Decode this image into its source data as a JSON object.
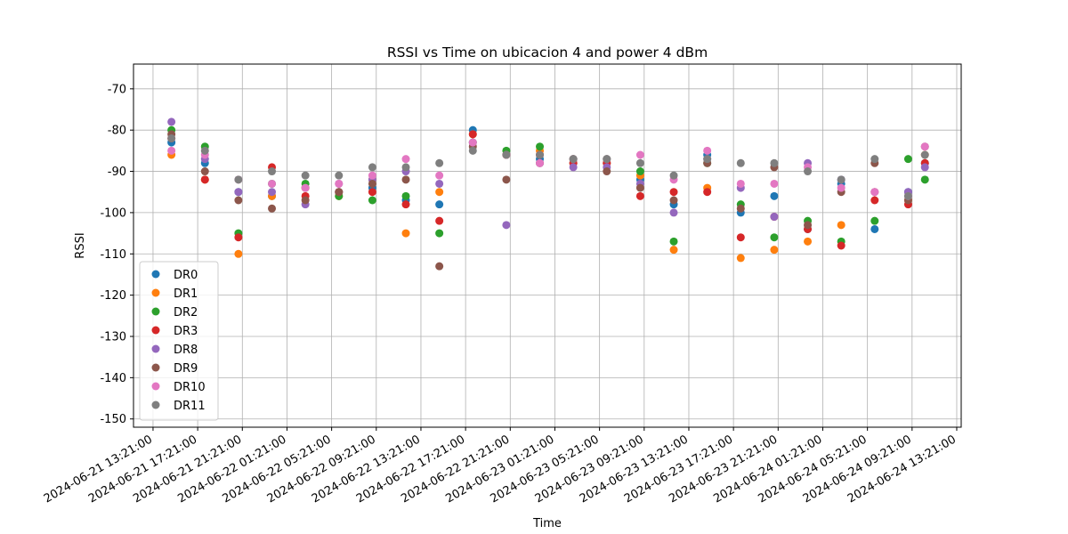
{
  "chart_data": {
    "type": "scatter",
    "title": "RSSI vs Time on ubicacion 4 and power 4 dBm",
    "x_label": "Time",
    "y_label": "RSSI",
    "x": [
      "2024-06-21 15:00:00",
      "2024-06-21 18:00:00",
      "2024-06-21 21:00:00",
      "2024-06-22 00:00:00",
      "2024-06-22 03:00:00",
      "2024-06-22 06:00:00",
      "2024-06-22 09:00:00",
      "2024-06-22 12:00:00",
      "2024-06-22 15:00:00",
      "2024-06-22 18:00:00",
      "2024-06-22 21:00:00",
      "2024-06-23 00:00:00",
      "2024-06-23 03:00:00",
      "2024-06-23 06:00:00",
      "2024-06-23 09:00:00",
      "2024-06-23 12:00:00",
      "2024-06-23 15:00:00",
      "2024-06-23 18:00:00",
      "2024-06-23 21:00:00",
      "2024-06-24 00:00:00",
      "2024-06-24 03:00:00",
      "2024-06-24 06:00:00",
      "2024-06-24 09:00:00",
      "2024-06-24 10:30:00"
    ],
    "series": [
      {
        "name": "DR0",
        "color": "#1f77b4",
        "values": [
          -83,
          -88,
          -95,
          -96,
          -94,
          -95,
          -94,
          -97,
          -98,
          -80,
          -86,
          -87,
          -88,
          -88,
          -92,
          -98,
          -86,
          -100,
          -96,
          -104,
          -93,
          -104,
          -95,
          -88
        ]
      },
      {
        "name": "DR1",
        "color": "#ff7f0e",
        "values": [
          -86,
          -92,
          -110,
          -96,
          -94,
          -96,
          -92,
          -105,
          -95,
          -81,
          -86,
          -85,
          -88,
          -88,
          -91,
          -109,
          -94,
          -111,
          -109,
          -107,
          -103,
          -95,
          -97,
          -86
        ]
      },
      {
        "name": "DR2",
        "color": "#2ca02c",
        "values": [
          -80,
          -84,
          -105,
          -93,
          -93,
          -96,
          -97,
          -96,
          -105,
          -83,
          -85,
          -84,
          -87,
          -87,
          -90,
          -107,
          -88,
          -98,
          -106,
          -102,
          -107,
          -102,
          -87,
          -92
        ]
      },
      {
        "name": "DR3",
        "color": "#d62728",
        "values": [
          -82,
          -92,
          -106,
          -89,
          -96,
          -95,
          -95,
          -98,
          -102,
          -81,
          -86,
          -86,
          -88,
          -88,
          -96,
          -95,
          -95,
          -106,
          -101,
          -104,
          -108,
          -97,
          -98,
          -88
        ]
      },
      {
        "name": "DR8",
        "color": "#9467bd",
        "values": [
          -78,
          -87,
          -95,
          -95,
          -98,
          -93,
          -92,
          -90,
          -93,
          -83,
          -103,
          -88,
          -89,
          -89,
          -93,
          -100,
          -87,
          -94,
          -101,
          -88,
          -92,
          -95,
          -95,
          -89
        ]
      },
      {
        "name": "DR9",
        "color": "#8c564b",
        "values": [
          -81,
          -90,
          -97,
          -99,
          -97,
          -95,
          -93,
          -92,
          -113,
          -84,
          -92,
          -88,
          -87,
          -90,
          -94,
          -97,
          -88,
          -99,
          -89,
          -103,
          -95,
          -88,
          -97,
          -84
        ]
      },
      {
        "name": "DR10",
        "color": "#e377c2",
        "values": [
          -85,
          -86,
          -92,
          -93,
          -94,
          -93,
          -91,
          -87,
          -91,
          -83,
          -86,
          -88,
          -87,
          -87,
          -86,
          -92,
          -85,
          -93,
          -93,
          -89,
          -94,
          -95,
          -96,
          -84
        ]
      },
      {
        "name": "DR11",
        "color": "#7f7f7f",
        "values": [
          -82,
          -85,
          -92,
          -90,
          -91,
          -91,
          -89,
          -89,
          -88,
          -85,
          -86,
          -86,
          -87,
          -87,
          -88,
          -91,
          -87,
          -88,
          -88,
          -90,
          -92,
          -87,
          -96,
          -86
        ]
      }
    ],
    "xlim": [
      "2024-06-21 11:36:00",
      "2024-06-24 13:45:00"
    ],
    "xticks": [
      "2024-06-21 13:21:00",
      "2024-06-21 17:21:00",
      "2024-06-21 21:21:00",
      "2024-06-22 01:21:00",
      "2024-06-22 05:21:00",
      "2024-06-22 09:21:00",
      "2024-06-22 13:21:00",
      "2024-06-22 17:21:00",
      "2024-06-22 21:21:00",
      "2024-06-23 01:21:00",
      "2024-06-23 05:21:00",
      "2024-06-23 09:21:00",
      "2024-06-23 13:21:00",
      "2024-06-23 17:21:00",
      "2024-06-23 21:21:00",
      "2024-06-24 01:21:00",
      "2024-06-24 05:21:00",
      "2024-06-24 09:21:00",
      "2024-06-24 13:21:00"
    ],
    "ylim": [
      -152,
      -64
    ],
    "yticks": [
      -150,
      -140,
      -130,
      -120,
      -110,
      -100,
      -90,
      -80,
      -70
    ],
    "grid": true,
    "legend": "lower left"
  }
}
